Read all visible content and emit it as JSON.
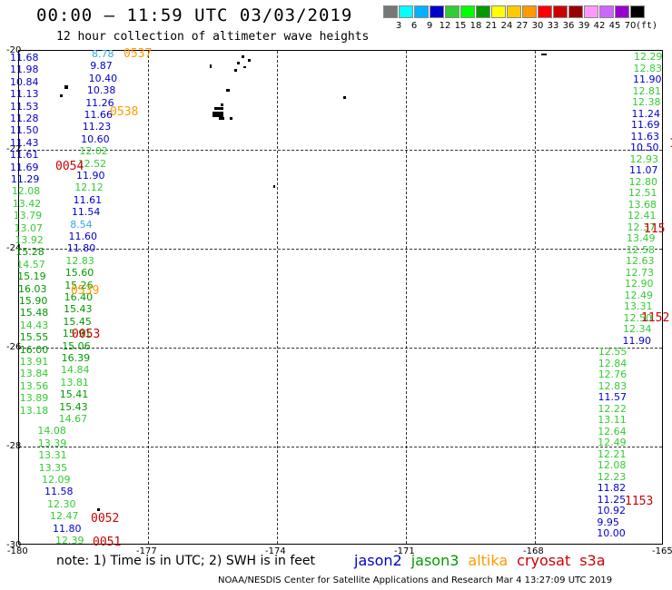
{
  "title": "00:00 — 11:59 UTC 03/03/2019",
  "subtitle": "12 hour collection of altimeter wave heights",
  "color_scale": {
    "colors": [
      "#777777",
      "#00ffff",
      "#00b2ff",
      "#0000cc",
      "#33cc33",
      "#00ff00",
      "#009900",
      "#ffff00",
      "#ffcc00",
      "#ff9900",
      "#ff0000",
      "#cc0000",
      "#990000",
      "#ff99ff",
      "#cc66ff",
      "#9900cc",
      "#000000"
    ],
    "ticks": [
      "3",
      "6",
      "9",
      "12",
      "15",
      "18",
      "21",
      "24",
      "27",
      "30",
      "33",
      "36",
      "39",
      "42",
      "45",
      "70"
    ],
    "unit": "(ft)"
  },
  "axes": {
    "y_labels": [
      "-20",
      "-22",
      "-24",
      "-26",
      "-28",
      "-30"
    ],
    "x_labels": [
      "-180",
      "-177",
      "-174",
      "-171",
      "-168",
      "-165"
    ]
  },
  "note": "note: 1) Time is in UTC; 2) SWH is in feet",
  "legend": [
    {
      "name": "jason2",
      "color": "#0000cc"
    },
    {
      "name": "jason3",
      "color": "#009900"
    },
    {
      "name": "altika",
      "color": "#ff9900"
    },
    {
      "name": "cryosat",
      "color": "#cc0000"
    },
    {
      "name": "s3a",
      "color": "#cc0000"
    }
  ],
  "footer": "NOAA/NESDIS Center for Satellite Applications and Research   Mar  4 13:27:09 UTC 2019",
  "colors": {
    "jason2": "#0000cc",
    "jason3": "#009900",
    "jason3_light": "#33cc33",
    "altika": "#ff9900",
    "altika_light": "#33aadd",
    "cryosat": "#cc0000"
  },
  "time_labels": [
    {
      "text": "0537",
      "color": "#ff9900"
    },
    {
      "text": "0538",
      "color": "#ff9900"
    },
    {
      "text": "0054",
      "color": "#cc0000"
    },
    {
      "text": "0539",
      "color": "#ff9900"
    },
    {
      "text": "0053",
      "color": "#cc0000"
    },
    {
      "text": "0052",
      "color": "#cc0000"
    },
    {
      "text": "0051",
      "color": "#cc0000"
    },
    {
      "text": "1153",
      "color": "#cc0000"
    },
    {
      "text": "1152",
      "color": "#cc0000"
    },
    {
      "text": "115",
      "color": "#cc0000"
    },
    {
      "text": "11",
      "color": "#cc0000"
    },
    {
      "text": "1",
      "color": "#cc0000"
    }
  ],
  "left_track_far": [
    "11.68",
    "11.98",
    "10.84",
    "11.13",
    "11.53",
    "11.28",
    "11.50",
    "11.43",
    "11.61",
    "11.69",
    "11.29",
    "12.08",
    "13.42",
    "13.79",
    "13.07",
    "13.92",
    "15.28",
    "14.57",
    "15.19",
    "16.03",
    "15.90",
    "15.48",
    "14.43",
    "15.55",
    "16.00",
    "13.91",
    "13.84",
    "13.56",
    "13.89",
    "13.18"
  ],
  "left_track_mid": [
    "8.78",
    "9.87",
    "10.40",
    "10.38",
    "11.26",
    "11.66",
    "11.23",
    "10.60",
    "12.02",
    "12.52",
    "11.90",
    "12.12",
    "11.61",
    "11.54",
    "8.54",
    "11.60",
    "11.80",
    "12.83",
    "15.60",
    "15.26",
    "16.40",
    "15.43",
    "15.45",
    "15.91",
    "15.06",
    "16.39",
    "14.84",
    "13.81",
    "15.41",
    "15.43",
    "14.67",
    "14.08",
    "13.39",
    "13.31",
    "13.35",
    "12.09",
    "11.58",
    "12.30",
    "12.47",
    "11.80",
    "12.39"
  ],
  "right_track": [
    "12.29",
    "12.83",
    "11.90",
    "12.81",
    "12.38",
    "11.24",
    "11.69",
    "11.63",
    "10.50",
    "12.93",
    "11.07",
    "12.80",
    "12.51",
    "13.68",
    "12.41",
    "12.37",
    "13.49",
    "12.58",
    "12.63",
    "12.73",
    "12.90",
    "12.49",
    "13.31",
    "12.50",
    "12.34",
    "11.90",
    "12.55",
    "12.84",
    "12.76",
    "12.83",
    "11.57",
    "12.22",
    "13.11",
    "12.64",
    "12.49",
    "12.21",
    "12.08",
    "12.23",
    "11.82",
    "11.25",
    "10.92",
    "9.95",
    "10.00"
  ]
}
